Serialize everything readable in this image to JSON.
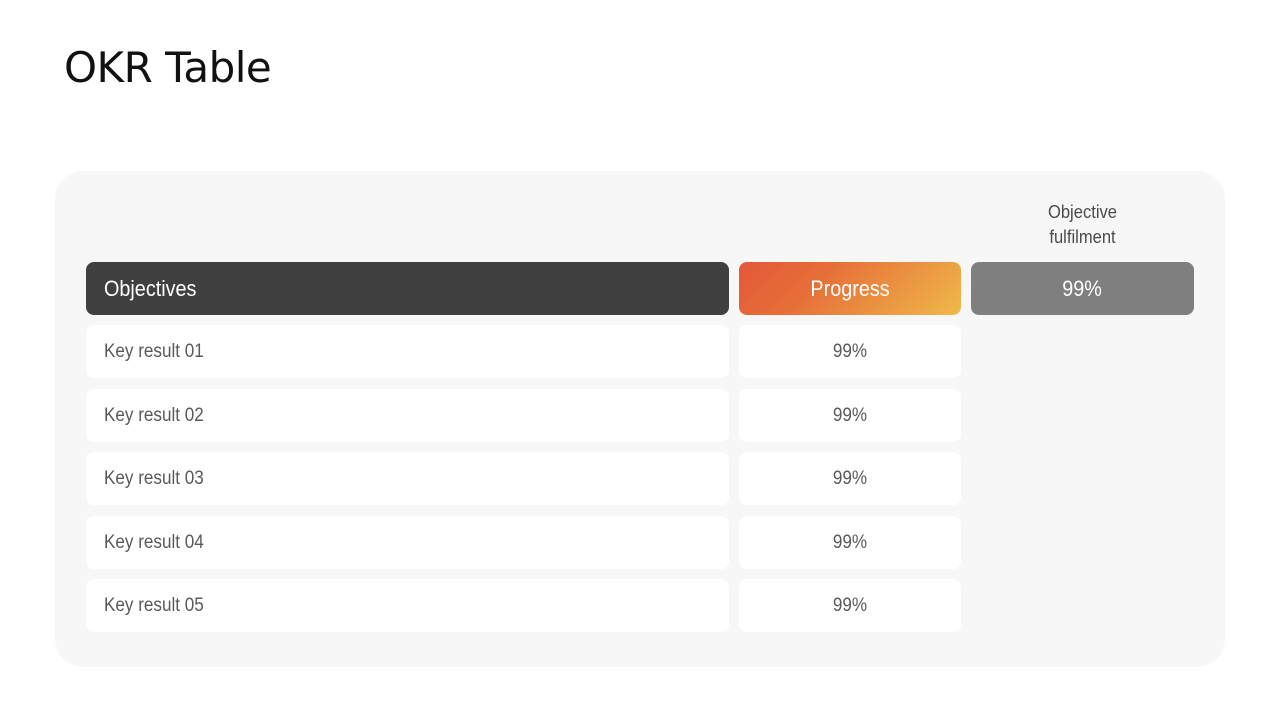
{
  "slide": {
    "title": "OKR Table"
  },
  "table": {
    "fulfilment_label_line1": "Objective",
    "fulfilment_label_line2": "fulfilment",
    "header": {
      "objectives": "Objectives",
      "progress": "Progress",
      "fulfilment_value": "99%"
    },
    "rows": [
      {
        "label": "Key result 01",
        "value": "99%"
      },
      {
        "label": "Key result 02",
        "value": "99%"
      },
      {
        "label": "Key result 03",
        "value": "99%"
      },
      {
        "label": "Key result 04",
        "value": "99%"
      },
      {
        "label": "Key result 05",
        "value": "99%"
      }
    ]
  },
  "colors": {
    "header_dark": "#404040",
    "progress_gradient_start": "#e4573a",
    "progress_gradient_end": "#efb94a",
    "fulfilment_gray": "#7f7f7f",
    "panel_background": "#f7f7f7"
  }
}
